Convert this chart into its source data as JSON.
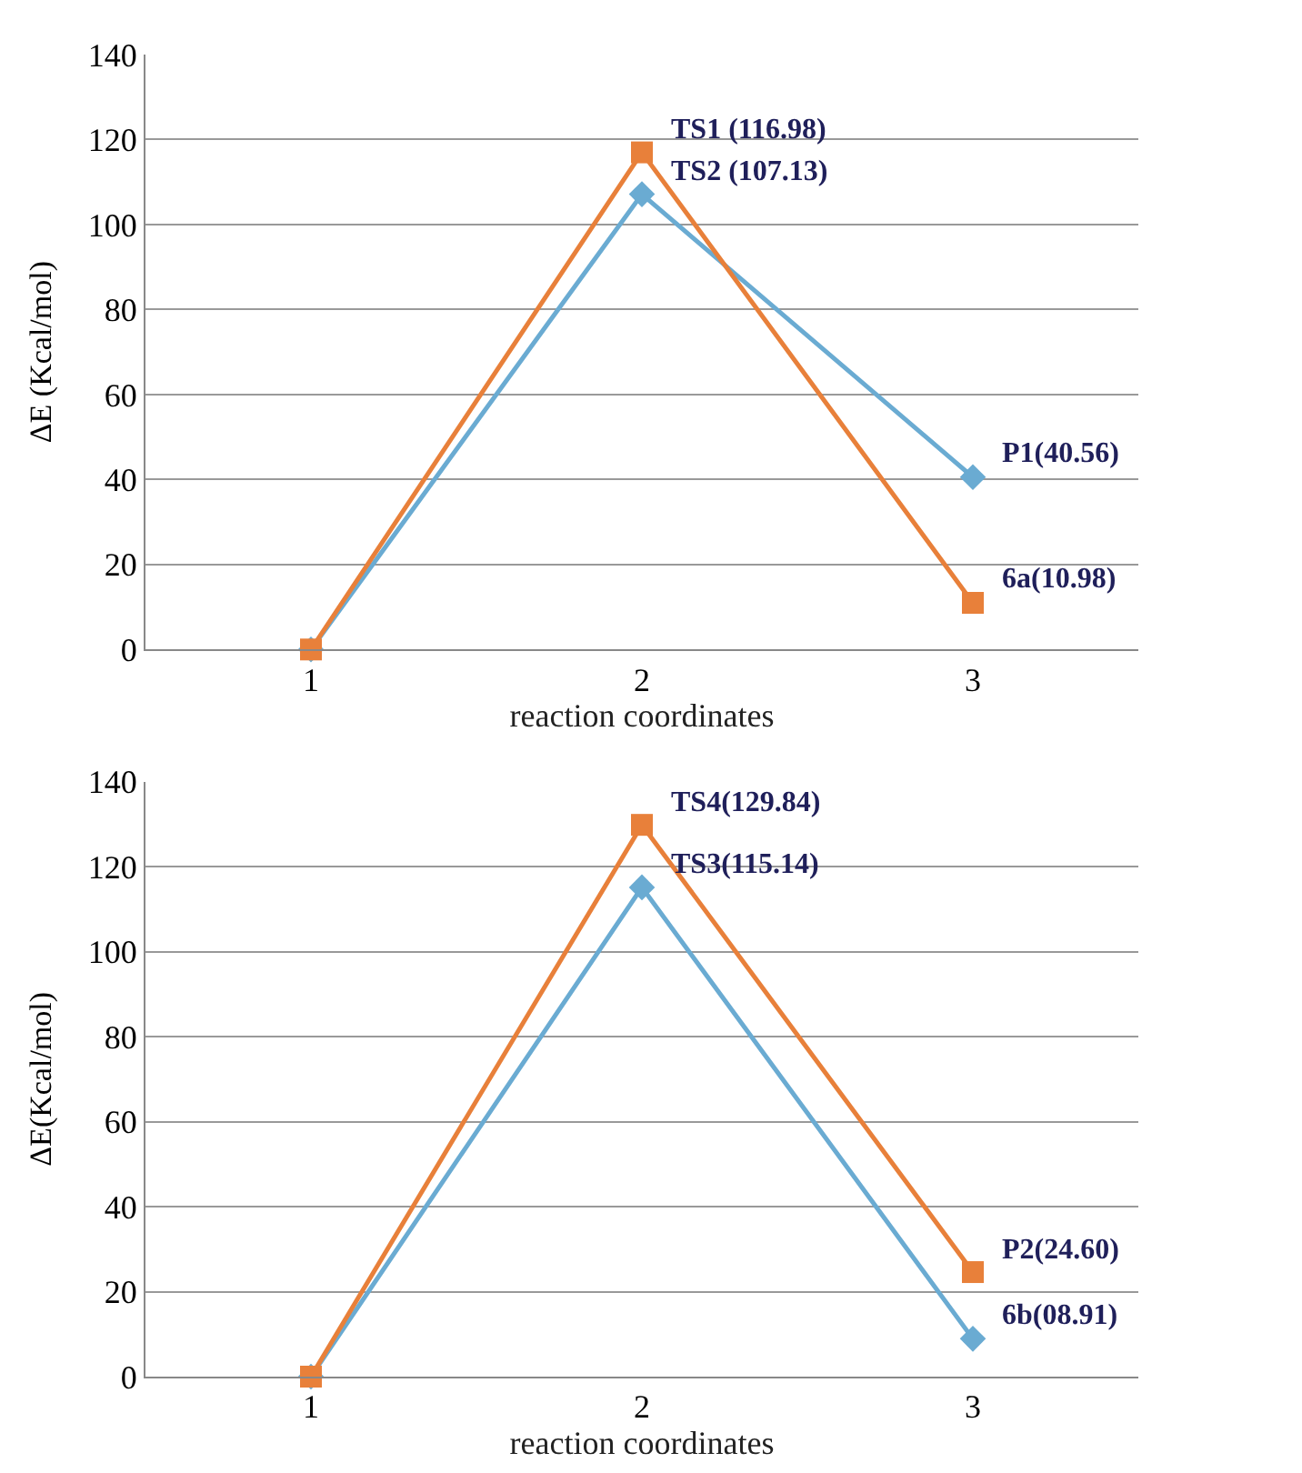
{
  "chart_data": [
    {
      "type": "line",
      "ylabel": "ΔE (Kcal/mol)",
      "xlabel": "reaction coordinates",
      "categories": [
        "1",
        "2",
        "3"
      ],
      "ylim": [
        0,
        140
      ],
      "yticks": [
        0,
        20,
        40,
        60,
        80,
        100,
        120,
        140
      ],
      "grid": "y",
      "series": [
        {
          "color": "#6aabd2",
          "values": [
            0,
            107.13,
            40.56
          ],
          "marker": "diamond"
        },
        {
          "color": "#e8803a",
          "values": [
            0,
            116.98,
            10.98
          ],
          "marker": "square"
        }
      ],
      "annotations": [
        {
          "text": "TS1 (116.98)",
          "x": "2",
          "y": 116.98
        },
        {
          "text": "TS2 (107.13)",
          "x": "2",
          "y": 107.13
        },
        {
          "text": "P1(40.56)",
          "x": "3",
          "y": 40.56
        },
        {
          "text": "6a(10.98)",
          "x": "3",
          "y": 10.98
        }
      ]
    },
    {
      "type": "line",
      "ylabel": "ΔE(Kcal/mol)",
      "xlabel": "reaction coordinates",
      "categories": [
        "1",
        "2",
        "3"
      ],
      "ylim": [
        0,
        140
      ],
      "yticks": [
        0,
        20,
        40,
        60,
        80,
        100,
        120,
        140
      ],
      "grid": "y",
      "series": [
        {
          "color": "#6aabd2",
          "values": [
            0,
            115.14,
            8.91
          ],
          "marker": "diamond"
        },
        {
          "color": "#e8803a",
          "values": [
            0,
            129.84,
            24.6
          ],
          "marker": "square"
        }
      ],
      "annotations": [
        {
          "text": "TS4(129.84)",
          "x": "2",
          "y": 129.84
        },
        {
          "text": "TS3(115.14)",
          "x": "2",
          "y": 115.14
        },
        {
          "text": "P2(24.60)",
          "x": "3",
          "y": 24.6
        },
        {
          "text": "6b(08.91)",
          "x": "3",
          "y": 8.91
        }
      ]
    }
  ]
}
